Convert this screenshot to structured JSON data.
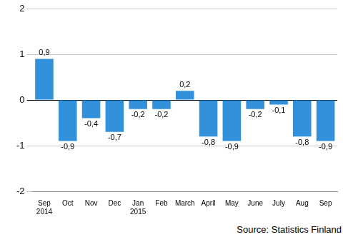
{
  "chart_data": {
    "type": "bar",
    "categories": [
      [
        "Sep",
        "2014"
      ],
      "Oct",
      "Nov",
      "Dec",
      [
        "Jan",
        "2015"
      ],
      "Feb",
      "March",
      "April",
      "May",
      "June",
      "July",
      "Aug",
      "Sep"
    ],
    "values": [
      0.9,
      -0.9,
      -0.4,
      -0.7,
      -0.2,
      -0.2,
      0.2,
      -0.8,
      -0.9,
      -0.2,
      -0.1,
      -0.8,
      -0.9
    ],
    "value_labels": [
      "0,9",
      "-0,9",
      "-0,4",
      "-0,7",
      "-0,2",
      "-0,2",
      "0,2",
      "-0,8",
      "-0,9",
      "-0,2",
      "-0,1",
      "-0,8",
      "-0,9"
    ],
    "data_labels": true,
    "color": "#3391dc",
    "ylim": [
      -2,
      2
    ],
    "yticks": [
      -2,
      -1,
      0,
      1,
      2
    ],
    "grid": true,
    "source": "Source:  Statistics Finland"
  }
}
